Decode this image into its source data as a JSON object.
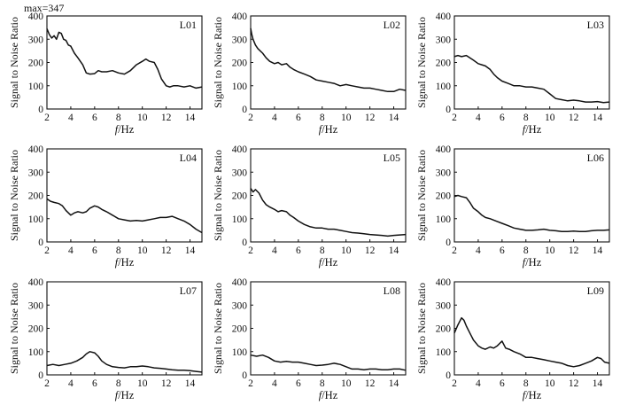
{
  "note": "max=347",
  "chart_data": {
    "type": "line",
    "layout": "3x3 grid of line charts",
    "xlabel_italic": "f",
    "xlabel_unit": "/Hz",
    "ylabel": "Signal to Noise Ratio",
    "xlim": [
      2,
      15
    ],
    "ylim": [
      0,
      400
    ],
    "xticks": [
      2,
      4,
      6,
      8,
      10,
      12,
      14
    ],
    "yticks": [
      0,
      100,
      200,
      300,
      400
    ],
    "panels": [
      {
        "label": "L01",
        "x": [
          2,
          2.2,
          2.4,
          2.6,
          2.8,
          3,
          3.2,
          3.4,
          3.6,
          3.8,
          4,
          4.3,
          4.6,
          5,
          5.3,
          5.6,
          6,
          6.3,
          6.6,
          7,
          7.5,
          8,
          8.5,
          9,
          9.5,
          10,
          10.3,
          10.6,
          11,
          11.3,
          11.6,
          12,
          12.3,
          12.6,
          13,
          13.5,
          14,
          14.5,
          15
        ],
        "y": [
          345,
          320,
          305,
          315,
          300,
          330,
          325,
          300,
          295,
          275,
          270,
          240,
          220,
          190,
          155,
          150,
          152,
          165,
          160,
          160,
          165,
          155,
          150,
          165,
          190,
          205,
          215,
          205,
          200,
          170,
          130,
          100,
          95,
          100,
          100,
          95,
          100,
          90,
          95
        ]
      },
      {
        "label": "L02",
        "x": [
          2,
          2.1,
          2.2,
          2.4,
          2.6,
          2.8,
          3,
          3.3,
          3.6,
          4,
          4.3,
          4.6,
          5,
          5.3,
          5.6,
          6,
          6.5,
          7,
          7.5,
          8,
          8.5,
          9,
          9.5,
          10,
          10.5,
          11,
          11.5,
          12,
          12.5,
          13,
          13.5,
          14,
          14.5,
          15
        ],
        "y": [
          347,
          320,
          300,
          275,
          260,
          250,
          240,
          220,
          205,
          195,
          200,
          190,
          195,
          180,
          170,
          160,
          150,
          140,
          125,
          120,
          115,
          110,
          100,
          105,
          100,
          95,
          90,
          90,
          85,
          80,
          75,
          75,
          85,
          80
        ]
      },
      {
        "label": "L03",
        "x": [
          2,
          2.3,
          2.6,
          3,
          3.3,
          3.6,
          4,
          4.3,
          4.6,
          5,
          5.3,
          5.6,
          6,
          6.5,
          7,
          7.5,
          8,
          8.5,
          9,
          9.5,
          10,
          10.5,
          11,
          11.5,
          12,
          12.5,
          13,
          13.5,
          14,
          14.5,
          15
        ],
        "y": [
          225,
          230,
          225,
          230,
          220,
          210,
          195,
          190,
          185,
          170,
          150,
          135,
          120,
          110,
          100,
          100,
          95,
          95,
          90,
          85,
          65,
          45,
          40,
          35,
          38,
          35,
          30,
          30,
          32,
          28,
          30
        ]
      },
      {
        "label": "L04",
        "x": [
          2,
          2.3,
          2.6,
          3,
          3.3,
          3.6,
          4,
          4.3,
          4.6,
          5,
          5.3,
          5.6,
          6,
          6.3,
          6.6,
          7,
          7.5,
          8,
          8.5,
          9,
          9.5,
          10,
          10.5,
          11,
          11.5,
          12,
          12.5,
          13,
          13.5,
          14,
          14.5,
          15
        ],
        "y": [
          185,
          175,
          170,
          165,
          155,
          135,
          115,
          125,
          130,
          125,
          130,
          145,
          155,
          150,
          140,
          130,
          115,
          100,
          95,
          90,
          92,
          90,
          95,
          100,
          105,
          105,
          110,
          100,
          90,
          75,
          55,
          40
        ]
      },
      {
        "label": "L05",
        "x": [
          2,
          2.2,
          2.4,
          2.7,
          3,
          3.3,
          3.6,
          4,
          4.3,
          4.6,
          5,
          5.3,
          5.6,
          6,
          6.5,
          7,
          7.5,
          8,
          8.5,
          9,
          9.5,
          10,
          10.5,
          11,
          11.5,
          12,
          12.5,
          13,
          13.5,
          14,
          14.5,
          15
        ],
        "y": [
          230,
          215,
          225,
          210,
          180,
          160,
          150,
          140,
          130,
          135,
          130,
          115,
          105,
          90,
          75,
          65,
          60,
          60,
          55,
          55,
          50,
          45,
          40,
          38,
          35,
          32,
          30,
          28,
          25,
          28,
          30,
          32
        ]
      },
      {
        "label": "L06",
        "x": [
          2,
          2.3,
          2.6,
          3,
          3.3,
          3.6,
          4,
          4.3,
          4.6,
          5,
          5.5,
          6,
          6.5,
          7,
          7.5,
          8,
          8.5,
          9,
          9.5,
          10,
          10.5,
          11,
          11.5,
          12,
          12.5,
          13,
          13.5,
          14,
          14.5,
          15
        ],
        "y": [
          195,
          200,
          195,
          190,
          170,
          145,
          130,
          115,
          105,
          100,
          90,
          80,
          70,
          60,
          55,
          50,
          50,
          52,
          55,
          50,
          48,
          45,
          45,
          47,
          45,
          45,
          48,
          50,
          50,
          52
        ]
      },
      {
        "label": "L07",
        "x": [
          2,
          2.5,
          3,
          3.5,
          4,
          4.5,
          5,
          5.3,
          5.6,
          6,
          6.3,
          6.6,
          7,
          7.5,
          8,
          8.5,
          9,
          9.5,
          10,
          10.5,
          11,
          11.5,
          12,
          12.5,
          13,
          13.5,
          14,
          14.5,
          15
        ],
        "y": [
          40,
          45,
          40,
          45,
          50,
          60,
          75,
          90,
          100,
          95,
          80,
          60,
          45,
          35,
          32,
          30,
          35,
          35,
          38,
          35,
          30,
          28,
          25,
          22,
          20,
          20,
          18,
          15,
          12
        ]
      },
      {
        "label": "L08",
        "x": [
          2,
          2.5,
          3,
          3.5,
          4,
          4.5,
          5,
          5.5,
          6,
          6.5,
          7,
          7.5,
          8,
          8.5,
          9,
          9.5,
          10,
          10.5,
          11,
          11.5,
          12,
          12.5,
          13,
          13.5,
          14,
          14.5,
          15
        ],
        "y": [
          85,
          80,
          85,
          75,
          60,
          55,
          58,
          55,
          55,
          50,
          45,
          40,
          42,
          45,
          50,
          45,
          35,
          25,
          25,
          22,
          25,
          25,
          22,
          22,
          25,
          25,
          20
        ]
      },
      {
        "label": "L09",
        "x": [
          2,
          2.3,
          2.6,
          2.8,
          3,
          3.3,
          3.6,
          4,
          4.3,
          4.6,
          5,
          5.3,
          5.6,
          6,
          6.3,
          6.6,
          7,
          7.5,
          8,
          8.5,
          9,
          9.5,
          10,
          10.5,
          11,
          11.5,
          12,
          12.5,
          13,
          13.5,
          14,
          14.3,
          14.6,
          15
        ],
        "y": [
          180,
          215,
          245,
          235,
          210,
          180,
          150,
          125,
          115,
          110,
          120,
          115,
          125,
          145,
          115,
          110,
          100,
          90,
          75,
          75,
          70,
          65,
          60,
          55,
          50,
          40,
          35,
          40,
          50,
          60,
          75,
          70,
          55,
          50
        ]
      }
    ]
  }
}
